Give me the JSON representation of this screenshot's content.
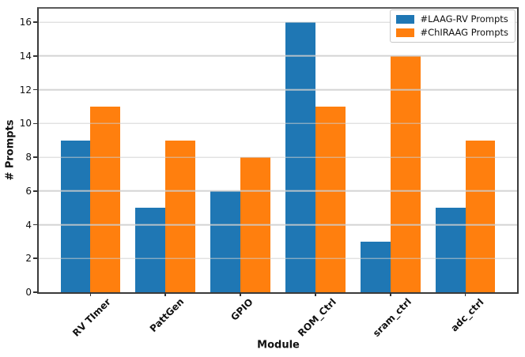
{
  "chart_data": {
    "type": "bar",
    "title": "",
    "xlabel": "Module",
    "ylabel": "# Prompts",
    "categories": [
      "RV TImer",
      "PattGen",
      "GPIO",
      "ROM_Ctrl",
      "sram_ctrl",
      "adc_ctrl"
    ],
    "series": [
      {
        "name": "#LAAG-RV Prompts",
        "color": "#1f77b4",
        "values": [
          9,
          5,
          6,
          16,
          3,
          5
        ]
      },
      {
        "name": "#ChIRAAG Prompts",
        "color": "#ff7f0e",
        "values": [
          11,
          9,
          8,
          11,
          14,
          9
        ]
      }
    ],
    "yticks": [
      0,
      2,
      4,
      6,
      8,
      10,
      12,
      14,
      16
    ],
    "ylim": [
      0,
      16.8
    ],
    "xlim": [
      -0.69,
      5.69
    ],
    "bar_width": 0.4,
    "grid": true,
    "grid_over_bars": true,
    "legend_position": "upper right",
    "x_tick_rotation_deg": 45
  }
}
